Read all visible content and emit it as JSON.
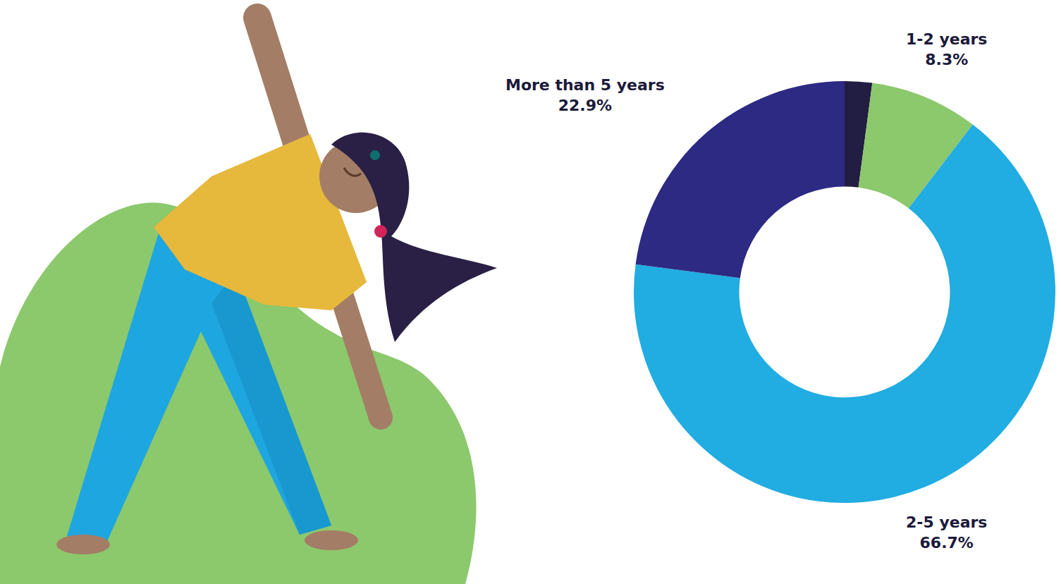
{
  "chart_data": {
    "type": "donut",
    "categories": [
      null,
      "1-2 years",
      "2-5 years",
      "More than 5 years"
    ],
    "values": [
      2.1,
      8.3,
      66.7,
      22.9
    ],
    "value_labels": [
      null,
      "8.3%",
      "66.7%",
      "22.9%"
    ],
    "colors": [
      "#221d42",
      "#8cc86c",
      "#21ace2",
      "#2c2a83"
    ],
    "data_labels": true
  }
}
